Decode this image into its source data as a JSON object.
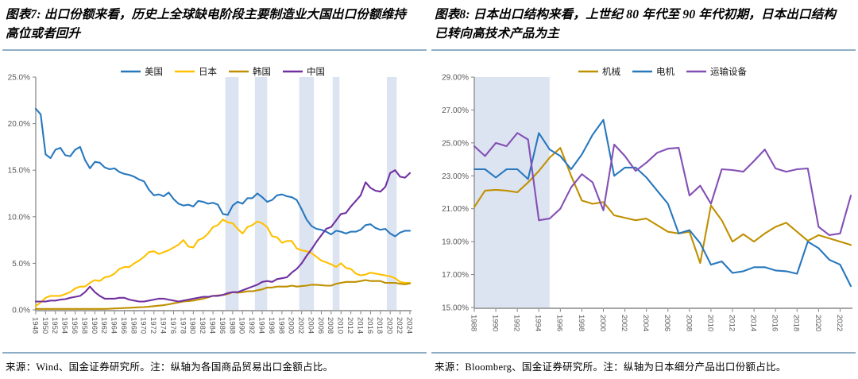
{
  "panels": [
    {
      "title": "图表7: 出口份额来看，历史上全球缺电阶段主要制造业大国出口份额维持高位或者回升",
      "source_note": "来源：Wind、国金证券研究所。注：纵轴为各国商品贸易出口金额占比。"
    },
    {
      "title": "图表8: 日本出口结构来看，上世纪 80 年代至 90 年代初期，日本出口结构已转向高技术产品为主",
      "source_note": "来源：Bloomberg、国金证券研究所。注：纵轴为日本细分产品出口份额占比。"
    }
  ],
  "colors": {
    "blue": "#2878BE",
    "bright_gold": "#FFC000",
    "dark_gold": "#BF9000",
    "purple_dark": "#7030A0",
    "purple_medium": "#8350B5",
    "band": "#DDE4F1",
    "rule": "#8FAEC6",
    "axis": "#808080",
    "axis_bottom": "#A6A6A6",
    "tick_text": "#595959"
  },
  "chart_data": [
    {
      "type": "line",
      "title": "图表7",
      "legend_position": "top",
      "grid": false,
      "xlim": [
        1948,
        2024
      ],
      "ylim": [
        0,
        25
      ],
      "yticks": [
        0,
        5,
        10,
        15,
        20,
        25
      ],
      "ytick_labels": [
        "0.0%",
        "5.0%",
        "10.0%",
        "15.0%",
        "20.0%",
        "25.0%"
      ],
      "x_ticks": [
        1948,
        1950,
        1952,
        1954,
        1956,
        1958,
        1960,
        1962,
        1964,
        1966,
        1968,
        1970,
        1972,
        1974,
        1976,
        1978,
        1980,
        1982,
        1984,
        1986,
        1988,
        1990,
        1992,
        1994,
        1996,
        1998,
        2000,
        2002,
        2004,
        2006,
        2008,
        2010,
        2012,
        2014,
        2016,
        2018,
        2020,
        2022,
        2024
      ],
      "x_tick_labels": [
        "1948",
        "1950",
        "1952",
        "1954",
        "1956",
        "1958",
        "1960",
        "1962",
        "1964",
        "1966",
        "1968",
        "1970",
        "1972",
        "1974",
        "1976",
        "1978",
        "1980",
        "1982",
        "1984",
        "1986",
        "1988",
        "1990",
        "1992",
        "1994",
        "1996",
        "1998",
        "2000",
        "2002",
        "2004",
        "2006",
        "2008",
        "2010",
        "2012",
        "2014",
        "2016",
        "2018",
        "2020",
        "2022",
        "2024"
      ],
      "shaded_bands": [
        [
          1986.5,
          1989.2
        ],
        [
          1992.5,
          1995.0
        ],
        [
          2001.5,
          2004.5
        ],
        [
          2008.3,
          2009.7
        ],
        [
          2019.3,
          2021.3
        ]
      ],
      "band_color": "#DDE4F1",
      "x": [
        1948,
        1949,
        1950,
        1951,
        1952,
        1953,
        1954,
        1955,
        1956,
        1957,
        1958,
        1959,
        1960,
        1961,
        1962,
        1963,
        1964,
        1965,
        1966,
        1967,
        1968,
        1969,
        1970,
        1971,
        1972,
        1973,
        1974,
        1975,
        1976,
        1977,
        1978,
        1979,
        1980,
        1981,
        1982,
        1983,
        1984,
        1985,
        1986,
        1987,
        1988,
        1989,
        1990,
        1991,
        1992,
        1993,
        1994,
        1995,
        1996,
        1997,
        1998,
        1999,
        2000,
        2001,
        2002,
        2003,
        2004,
        2005,
        2006,
        2007,
        2008,
        2009,
        2010,
        2011,
        2012,
        2013,
        2014,
        2015,
        2016,
        2017,
        2018,
        2019,
        2020,
        2021,
        2022,
        2023,
        2024
      ],
      "series": [
        {
          "id": "us",
          "name": "美国",
          "color": "#2878BE",
          "values": [
            21.6,
            21.0,
            16.7,
            16.3,
            17.2,
            17.4,
            16.6,
            16.5,
            17.2,
            17.5,
            16.1,
            15.2,
            15.9,
            15.8,
            15.3,
            15.1,
            15.2,
            14.8,
            14.6,
            14.5,
            14.3,
            14.0,
            13.8,
            12.9,
            12.3,
            12.4,
            12.2,
            12.6,
            11.9,
            11.4,
            11.2,
            11.3,
            11.1,
            11.7,
            11.6,
            11.4,
            11.5,
            11.3,
            10.3,
            10.2,
            11.2,
            11.6,
            11.4,
            12.0,
            12.0,
            12.5,
            12.1,
            11.6,
            11.8,
            12.3,
            12.4,
            12.2,
            12.1,
            11.8,
            10.8,
            9.7,
            9.0,
            8.7,
            8.6,
            8.4,
            8.1,
            8.5,
            8.4,
            8.2,
            8.4,
            8.4,
            8.6,
            9.1,
            9.2,
            8.8,
            8.6,
            8.7,
            8.2,
            7.9,
            8.3,
            8.5,
            8.5
          ]
        },
        {
          "id": "japan",
          "name": "日本",
          "color": "#FFC000",
          "values": [
            0.4,
            0.8,
            1.3,
            1.5,
            1.5,
            1.5,
            1.7,
            1.9,
            2.3,
            2.5,
            2.5,
            2.9,
            3.2,
            3.1,
            3.5,
            3.6,
            3.9,
            4.4,
            4.6,
            4.6,
            5.0,
            5.3,
            5.7,
            6.2,
            6.3,
            6.0,
            6.2,
            6.4,
            6.7,
            7.0,
            7.5,
            6.8,
            6.7,
            7.5,
            7.7,
            8.2,
            8.9,
            9.1,
            9.7,
            9.4,
            9.3,
            8.7,
            8.2,
            8.9,
            9.1,
            9.5,
            9.3,
            8.9,
            7.9,
            7.8,
            7.2,
            7.4,
            7.4,
            6.6,
            6.4,
            6.3,
            6.1,
            5.7,
            5.3,
            5.1,
            4.9,
            4.6,
            5.0,
            4.5,
            4.4,
            3.9,
            3.7,
            3.8,
            4.0,
            3.9,
            3.8,
            3.7,
            3.6,
            3.4,
            3.0,
            2.9,
            2.9
          ]
        },
        {
          "id": "korea",
          "name": "韩国",
          "color": "#BF9000",
          "values": [
            0.1,
            0.1,
            0.1,
            0.1,
            0.1,
            0.1,
            0.1,
            0.1,
            0.1,
            0.1,
            0.1,
            0.1,
            0.1,
            0.1,
            0.1,
            0.12,
            0.15,
            0.17,
            0.2,
            0.22,
            0.25,
            0.28,
            0.3,
            0.35,
            0.4,
            0.45,
            0.5,
            0.6,
            0.7,
            0.8,
            0.9,
            0.95,
            1.0,
            1.1,
            1.2,
            1.35,
            1.5,
            1.55,
            1.6,
            1.7,
            1.9,
            1.85,
            1.9,
            2.0,
            2.0,
            2.1,
            2.2,
            2.4,
            2.4,
            2.5,
            2.5,
            2.5,
            2.6,
            2.5,
            2.55,
            2.6,
            2.7,
            2.7,
            2.65,
            2.6,
            2.6,
            2.8,
            2.9,
            3.0,
            3.0,
            3.0,
            3.1,
            3.2,
            3.1,
            3.1,
            3.1,
            2.9,
            2.9,
            2.9,
            2.8,
            2.75,
            2.85
          ]
        },
        {
          "id": "china",
          "name": "中国",
          "color": "#7030A0",
          "values": [
            0.9,
            0.9,
            0.9,
            1.0,
            1.0,
            1.1,
            1.15,
            1.3,
            1.4,
            1.5,
            1.9,
            2.5,
            1.9,
            1.5,
            1.2,
            1.2,
            1.2,
            1.3,
            1.3,
            1.1,
            1.0,
            0.9,
            0.9,
            1.0,
            1.1,
            1.2,
            1.2,
            1.1,
            1.0,
            0.9,
            1.0,
            1.1,
            1.2,
            1.3,
            1.4,
            1.4,
            1.5,
            1.5,
            1.6,
            1.8,
            1.9,
            1.9,
            2.1,
            2.3,
            2.5,
            2.7,
            3.0,
            3.1,
            3.0,
            3.3,
            3.4,
            3.5,
            4.0,
            4.4,
            5.0,
            5.8,
            6.5,
            7.3,
            8.0,
            8.7,
            8.9,
            9.6,
            10.3,
            10.4,
            11.1,
            11.7,
            12.3,
            13.7,
            13.1,
            12.8,
            12.7,
            13.2,
            14.7,
            15.0,
            14.3,
            14.2,
            14.7
          ]
        }
      ]
    },
    {
      "type": "line",
      "title": "图表8",
      "legend_position": "top",
      "grid": false,
      "xlim": [
        1988,
        2023
      ],
      "ylim": [
        15,
        29
      ],
      "yticks": [
        15,
        17,
        19,
        21,
        23,
        25,
        27,
        29
      ],
      "ytick_labels": [
        "15.00%",
        "17.00%",
        "19.00%",
        "21.00%",
        "23.00%",
        "25.00%",
        "27.00%",
        "29.00%"
      ],
      "x_ticks": [
        1988,
        1990,
        1992,
        1994,
        1996,
        1998,
        2000,
        2002,
        2004,
        2006,
        2008,
        2010,
        2012,
        2014,
        2016,
        2018,
        2020,
        2022
      ],
      "x_tick_labels": [
        "1988",
        "1990",
        "1992",
        "1994",
        "1996",
        "1998",
        "2000",
        "2002",
        "2004",
        "2006",
        "2008",
        "2010",
        "2012",
        "2014",
        "2016",
        "2018",
        "2020",
        "2022"
      ],
      "shaded_bands": [
        [
          1988,
          1995
        ]
      ],
      "band_color": "#DDE4F1",
      "x": [
        1988,
        1989,
        1990,
        1991,
        1992,
        1993,
        1994,
        1995,
        1996,
        1997,
        1998,
        1999,
        2000,
        2001,
        2002,
        2003,
        2004,
        2005,
        2006,
        2007,
        2008,
        2009,
        2010,
        2011,
        2012,
        2013,
        2014,
        2015,
        2016,
        2017,
        2018,
        2019,
        2020,
        2021,
        2022,
        2023
      ],
      "series": [
        {
          "id": "machinery",
          "name": "机械",
          "color": "#BF9000",
          "values": [
            21.1,
            22.1,
            22.15,
            22.1,
            22.0,
            22.6,
            23.3,
            24.1,
            24.7,
            23.0,
            21.5,
            21.3,
            21.4,
            20.6,
            20.45,
            20.3,
            20.4,
            20.0,
            19.6,
            19.5,
            19.6,
            17.7,
            21.2,
            20.3,
            19.0,
            19.45,
            19.0,
            19.5,
            19.9,
            20.15,
            19.6,
            19.05,
            19.4,
            19.2,
            19.0,
            18.8
          ]
        },
        {
          "id": "electric-machinery",
          "name": "电机",
          "color": "#2878BE",
          "values": [
            23.4,
            23.4,
            22.9,
            23.4,
            23.4,
            22.8,
            25.6,
            24.6,
            24.2,
            23.4,
            24.3,
            25.5,
            26.4,
            23.0,
            23.5,
            23.5,
            22.9,
            22.1,
            21.3,
            19.5,
            19.7,
            18.9,
            17.6,
            17.8,
            17.1,
            17.2,
            17.45,
            17.45,
            17.25,
            17.2,
            17.05,
            19.0,
            18.6,
            17.9,
            17.6,
            16.3
          ]
        },
        {
          "id": "transport-equipment",
          "name": "运输设备",
          "color": "#8350B5",
          "values": [
            24.8,
            24.2,
            25.0,
            24.8,
            25.6,
            25.2,
            20.3,
            20.4,
            21.0,
            22.3,
            23.1,
            22.6,
            20.9,
            24.9,
            24.2,
            23.3,
            23.8,
            24.4,
            24.65,
            24.7,
            21.8,
            22.4,
            21.3,
            23.4,
            23.35,
            23.25,
            23.9,
            24.6,
            23.45,
            23.25,
            23.4,
            23.45,
            19.9,
            19.4,
            19.5,
            21.8
          ]
        }
      ]
    }
  ]
}
